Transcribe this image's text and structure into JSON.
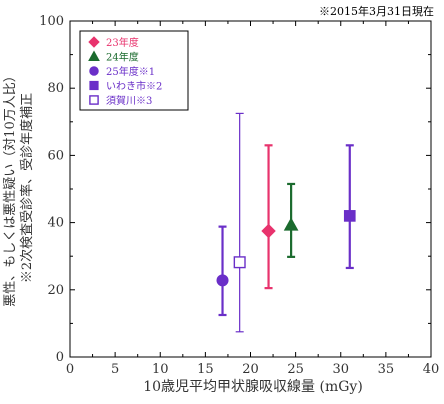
{
  "note": "※2015年3月31日現在",
  "chart_data": {
    "type": "scatter",
    "xlabel": "10歳児平均甲状腺吸収線量 (mGy)",
    "ylabel_lines": [
      "悪性、もしくは悪性疑い（対10万人比）",
      "※2次検査受診率、受診年度補正"
    ],
    "xlim": [
      0,
      40
    ],
    "ylim": [
      0,
      100
    ],
    "xticks": [
      0,
      5,
      10,
      15,
      20,
      25,
      30,
      35,
      40
    ],
    "yticks": [
      0,
      20,
      40,
      60,
      80,
      100
    ],
    "grid": false,
    "legend_position": "top-left",
    "series": [
      {
        "name": "23年度",
        "marker": "diamond",
        "color": "#e8336d",
        "filled": true,
        "x": 22.0,
        "y": 37.5,
        "err_low": 20.5,
        "err_high": 63.0
      },
      {
        "name": "24年度",
        "marker": "triangle",
        "color": "#1b6b2e",
        "filled": true,
        "x": 24.5,
        "y": 39.3,
        "err_low": 29.8,
        "err_high": 51.5
      },
      {
        "name": "25年度※1",
        "marker": "circle",
        "color": "#6a2fc8",
        "filled": true,
        "x": 16.9,
        "y": 22.8,
        "err_low": 12.5,
        "err_high": 38.8
      },
      {
        "name": "いわき市※2",
        "marker": "square",
        "color": "#6a2fc8",
        "filled": true,
        "x": 31.0,
        "y": 42.0,
        "err_low": 26.5,
        "err_high": 63.0
      },
      {
        "name": "須賀川※3",
        "marker": "square",
        "color": "#6a2fc8",
        "filled": false,
        "x": 18.8,
        "y": 28.2,
        "err_low": 7.5,
        "err_high": 72.5
      }
    ]
  }
}
